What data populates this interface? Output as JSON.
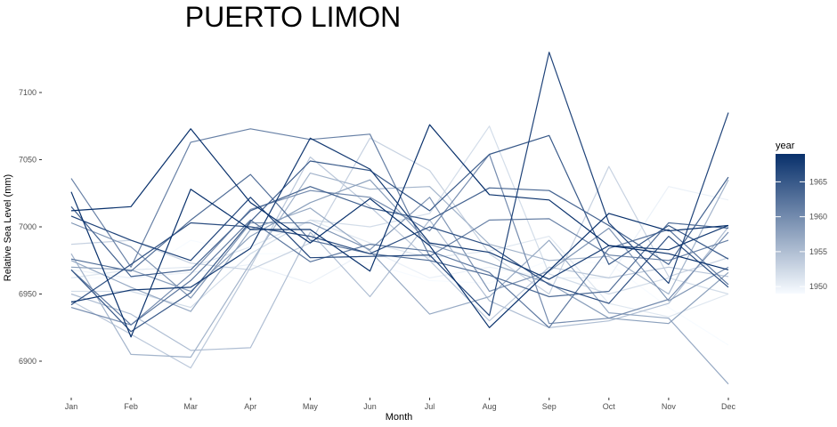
{
  "chart_data": {
    "type": "line",
    "title": "PUERTO LIMON",
    "xlabel": "Month",
    "ylabel": "Relative Sea Level (mm)",
    "categories": [
      "Jan",
      "Feb",
      "Mar",
      "Apr",
      "May",
      "Jun",
      "Jul",
      "Aug",
      "Sep",
      "Oct",
      "Nov",
      "Dec"
    ],
    "ylim": [
      6880,
      7130
    ],
    "yticks": [
      6900,
      6950,
      7000,
      7050,
      7100
    ],
    "grid": false,
    "legend": {
      "title": "year",
      "position": "right",
      "ticks": [
        1950,
        1955,
        1960,
        1965
      ],
      "range": [
        1949,
        1969
      ],
      "color_low": "#f7fbff",
      "color_high": "#08306b"
    },
    "series": [
      {
        "year": 1949,
        "values": [
          6962,
          6962,
          6990,
          6980,
          6980,
          6973,
          6960,
          6958,
          6975,
          6973,
          6940,
          6912
        ]
      },
      {
        "year": 1950,
        "values": [
          6968,
          6962,
          6966,
          6972,
          6958,
          6983,
          6962,
          6970,
          6962,
          6962,
          7030,
          7020
        ]
      },
      {
        "year": 1951,
        "values": [
          6962,
          6968,
          6970,
          6985,
          7005,
          6988,
          6977,
          6982,
          6993,
          6943,
          6933,
          6950
        ]
      },
      {
        "year": 1952,
        "values": [
          6952,
          6952,
          6940,
          6980,
          7005,
          7000,
          7010,
          7075,
          6965,
          6950,
          6962,
          6950
        ]
      },
      {
        "year": 1953,
        "values": [
          6987,
          6990,
          6973,
          6968,
          6988,
          7066,
          7042,
          6980,
          6950,
          7045,
          6963,
          6977
        ]
      },
      {
        "year": 1954,
        "values": [
          6945,
          6920,
          6895,
          6970,
          7052,
          7015,
          6975,
          6930,
          6970,
          6962,
          6970,
          6963
        ]
      },
      {
        "year": 1955,
        "values": [
          6950,
          6935,
          6908,
          6910,
          6996,
          6948,
          7005,
          6945,
          6925,
          6930,
          6943,
          7000
        ]
      },
      {
        "year": 1956,
        "values": [
          6980,
          6905,
          6903,
          6973,
          7040,
          7028,
          7030,
          6987,
          6975,
          6978,
          6950,
          7035
        ]
      },
      {
        "year": 1957,
        "values": [
          6975,
          6955,
          6937,
          6998,
          7014,
          6982,
          6935,
          6948,
          6990,
          6936,
          6932,
          6883
        ]
      },
      {
        "year": 1958,
        "values": [
          6970,
          6968,
          6952,
          6993,
          7018,
          7035,
          6987,
          6973,
          6958,
          6932,
          6928,
          6966
        ]
      },
      {
        "year": 1959,
        "values": [
          7003,
          6985,
          6947,
          7003,
          7003,
          6983,
          7022,
          6952,
          6967,
          6999,
          6945,
          6970
        ]
      },
      {
        "year": 1960,
        "values": [
          6940,
          6927,
          6965,
          7013,
          7027,
          7022,
          6997,
          7054,
          6928,
          6932,
          6946,
          6996
        ]
      },
      {
        "year": 1961,
        "values": [
          7036,
          6970,
          7063,
          7073,
          7065,
          7069,
          6978,
          7005,
          7006,
          6979,
          6975,
          6990
        ]
      },
      {
        "year": 1962,
        "values": [
          6968,
          6927,
          6960,
          7005,
          6974,
          6987,
          6982,
          6966,
          6925,
          6984,
          6998,
          6957
        ]
      },
      {
        "year": 1963,
        "values": [
          6976,
          6967,
          7005,
          7039,
          6990,
          6980,
          6975,
          6964,
          6948,
          6952,
          7003,
          6999
        ]
      },
      {
        "year": 1964,
        "values": [
          7015,
          6963,
          6968,
          7012,
          7030,
          7014,
          7005,
          7029,
          7027,
          7001,
          6972,
          7037
        ]
      },
      {
        "year": 1965,
        "values": [
          6968,
          6922,
          6951,
          7004,
          7049,
          7042,
          7012,
          7054,
          7068,
          6972,
          7001,
          6976
        ]
      },
      {
        "year": 1966,
        "values": [
          6942,
          6972,
          7003,
          7000,
          6993,
          6980,
          7000,
          6986,
          6957,
          6943,
          6993,
          6955
        ]
      },
      {
        "year": 1967,
        "values": [
          7008,
          6990,
          6975,
          7022,
          6977,
          6978,
          6979,
          6934,
          7130,
          7003,
          6958,
          7085
        ]
      },
      {
        "year": 1968,
        "values": [
          6944,
          6953,
          6955,
          6984,
          7066,
          7043,
          6988,
          6981,
          6961,
          6986,
          6983,
          7001
        ]
      },
      {
        "year": 1969,
        "values": [
          7026,
          6918,
          7028,
          6998,
          6998,
          6967,
          7076,
          7024,
          7020,
          6986,
          6980,
          6968
        ]
      },
      {
        "year": 1969,
        "values": [
          7012,
          7015,
          7073,
          7018,
          6988,
          7021,
          6986,
          6925,
          null,
          7010,
          6997,
          7001
        ]
      }
    ]
  }
}
